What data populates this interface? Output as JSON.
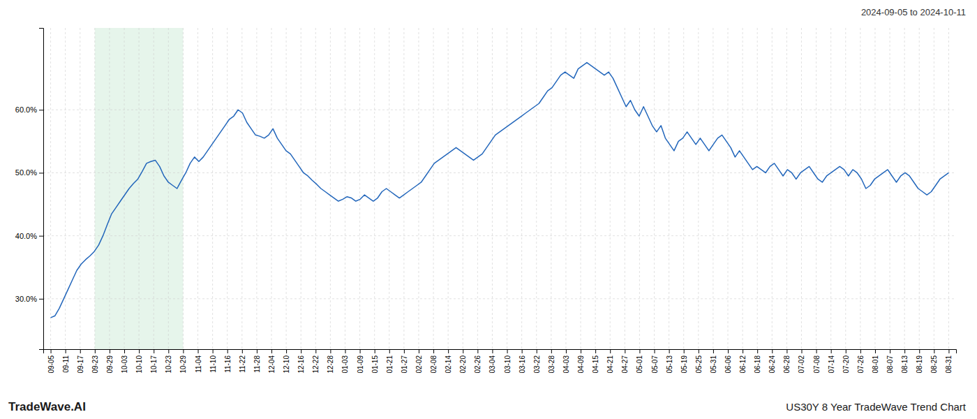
{
  "chart_data": {
    "type": "line",
    "title": "US30Y 8 Year TradeWave Trend Chart",
    "subtitle": "2024-09-05 to 2024-10-11",
    "annotations": [
      "TradeWave.AI"
    ],
    "color": "#2266bb",
    "grid": true,
    "shade": {
      "range": [
        3,
        9
      ],
      "color": "#d6eedd"
    },
    "xlim": [
      -0.5,
      61.5
    ],
    "xticks": [
      {
        "value": 0,
        "label": "09-05"
      },
      {
        "value": 1,
        "label": "09-11"
      },
      {
        "value": 2,
        "label": "09-17"
      },
      {
        "value": 3,
        "label": "09-23"
      },
      {
        "value": 4,
        "label": "09-29"
      },
      {
        "value": 5,
        "label": "10-03"
      },
      {
        "value": 6,
        "label": "10-10"
      },
      {
        "value": 7,
        "label": "10-17"
      },
      {
        "value": 8,
        "label": "10-23"
      },
      {
        "value": 9,
        "label": "10-29"
      },
      {
        "value": 10,
        "label": "11-04"
      },
      {
        "value": 11,
        "label": "11-10"
      },
      {
        "value": 12,
        "label": "11-16"
      },
      {
        "value": 13,
        "label": "11-22"
      },
      {
        "value": 14,
        "label": "11-28"
      },
      {
        "value": 15,
        "label": "12-04"
      },
      {
        "value": 16,
        "label": "12-10"
      },
      {
        "value": 17,
        "label": "12-16"
      },
      {
        "value": 18,
        "label": "12-22"
      },
      {
        "value": 19,
        "label": "12-28"
      },
      {
        "value": 20,
        "label": "01-03"
      },
      {
        "value": 21,
        "label": "01-09"
      },
      {
        "value": 22,
        "label": "01-15"
      },
      {
        "value": 23,
        "label": "01-21"
      },
      {
        "value": 24,
        "label": "01-27"
      },
      {
        "value": 25,
        "label": "02-02"
      },
      {
        "value": 26,
        "label": "02-08"
      },
      {
        "value": 27,
        "label": "02-14"
      },
      {
        "value": 28,
        "label": "02-20"
      },
      {
        "value": 29,
        "label": "02-26"
      },
      {
        "value": 30,
        "label": "03-04"
      },
      {
        "value": 31,
        "label": "03-10"
      },
      {
        "value": 32,
        "label": "03-16"
      },
      {
        "value": 33,
        "label": "03-22"
      },
      {
        "value": 34,
        "label": "03-28"
      },
      {
        "value": 35,
        "label": "04-03"
      },
      {
        "value": 36,
        "label": "04-09"
      },
      {
        "value": 37,
        "label": "04-15"
      },
      {
        "value": 38,
        "label": "04-21"
      },
      {
        "value": 39,
        "label": "04-27"
      },
      {
        "value": 40,
        "label": "05-01"
      },
      {
        "value": 41,
        "label": "05-07"
      },
      {
        "value": 42,
        "label": "05-13"
      },
      {
        "value": 43,
        "label": "05-19"
      },
      {
        "value": 44,
        "label": "05-25"
      },
      {
        "value": 45,
        "label": "05-31"
      },
      {
        "value": 46,
        "label": "06-06"
      },
      {
        "value": 47,
        "label": "06-12"
      },
      {
        "value": 48,
        "label": "06-18"
      },
      {
        "value": 49,
        "label": "06-24"
      },
      {
        "value": 50,
        "label": "06-28"
      },
      {
        "value": 51,
        "label": "07-02"
      },
      {
        "value": 52,
        "label": "07-08"
      },
      {
        "value": 53,
        "label": "07-14"
      },
      {
        "value": 54,
        "label": "07-20"
      },
      {
        "value": 55,
        "label": "07-26"
      },
      {
        "value": 56,
        "label": "08-01"
      },
      {
        "value": 57,
        "label": "08-07"
      },
      {
        "value": 58,
        "label": "08-13"
      },
      {
        "value": 59,
        "label": "08-19"
      },
      {
        "value": 60,
        "label": "08-25"
      },
      {
        "value": 61,
        "label": "08-31"
      }
    ],
    "ylim": [
      22,
      73
    ],
    "yticks": [
      {
        "value": 30.0,
        "label": "30.0%"
      },
      {
        "value": 40.0,
        "label": "40.0%"
      },
      {
        "value": 50.0,
        "label": "50.0%"
      },
      {
        "value": 60.0,
        "label": "60.0%"
      }
    ],
    "values": [
      27.0,
      27.3,
      28.5,
      30.0,
      31.5,
      33.0,
      34.5,
      35.5,
      36.2,
      36.8,
      37.5,
      38.5,
      40.0,
      41.8,
      43.5,
      44.5,
      45.5,
      46.5,
      47.5,
      48.3,
      49.0,
      50.2,
      51.5,
      51.8,
      52.0,
      51.0,
      49.5,
      48.5,
      48.0,
      47.5,
      48.8,
      50.0,
      51.5,
      52.5,
      51.8,
      52.5,
      53.5,
      54.5,
      55.5,
      56.5,
      57.5,
      58.5,
      59.0,
      60.0,
      59.5,
      58.0,
      57.0,
      56.0,
      55.8,
      55.5,
      56.0,
      57.0,
      55.5,
      54.5,
      53.5,
      53.0,
      52.0,
      51.0,
      50.0,
      49.5,
      48.8,
      48.2,
      47.5,
      47.0,
      46.5,
      46.0,
      45.5,
      45.8,
      46.2,
      46.0,
      45.5,
      45.8,
      46.5,
      46.0,
      45.5,
      46.0,
      47.0,
      47.5,
      47.0,
      46.5,
      46.0,
      46.5,
      47.0,
      47.5,
      48.0,
      48.5,
      49.5,
      50.5,
      51.5,
      52.0,
      52.5,
      53.0,
      53.5,
      54.0,
      53.5,
      53.0,
      52.5,
      52.0,
      52.5,
      53.0,
      54.0,
      55.0,
      56.0,
      56.5,
      57.0,
      57.5,
      58.0,
      58.5,
      59.0,
      59.5,
      60.0,
      60.5,
      61.0,
      62.0,
      63.0,
      63.5,
      64.5,
      65.5,
      66.0,
      65.5,
      65.0,
      66.5,
      67.0,
      67.5,
      67.0,
      66.5,
      66.0,
      65.5,
      66.0,
      65.0,
      63.5,
      62.0,
      60.5,
      61.5,
      60.0,
      59.0,
      60.5,
      59.0,
      57.5,
      56.5,
      57.5,
      55.5,
      54.5,
      53.5,
      55.0,
      55.5,
      56.5,
      55.5,
      54.5,
      55.5,
      54.5,
      53.5,
      54.5,
      55.5,
      56.0,
      55.0,
      54.0,
      52.5,
      53.5,
      52.5,
      51.5,
      50.5,
      51.0,
      50.5,
      50.0,
      51.0,
      51.5,
      50.5,
      49.5,
      50.5,
      50.0,
      49.0,
      50.0,
      50.5,
      51.0,
      50.0,
      49.0,
      48.5,
      49.5,
      50.0,
      50.5,
      51.0,
      50.5,
      49.5,
      50.5,
      50.0,
      49.0,
      47.5,
      48.0,
      49.0,
      49.5,
      50.0,
      50.5,
      49.5,
      48.5,
      49.5,
      50.0,
      49.5,
      48.5,
      47.5,
      47.0,
      46.5,
      47.0,
      48.0,
      49.0,
      49.5,
      50.0
    ]
  }
}
